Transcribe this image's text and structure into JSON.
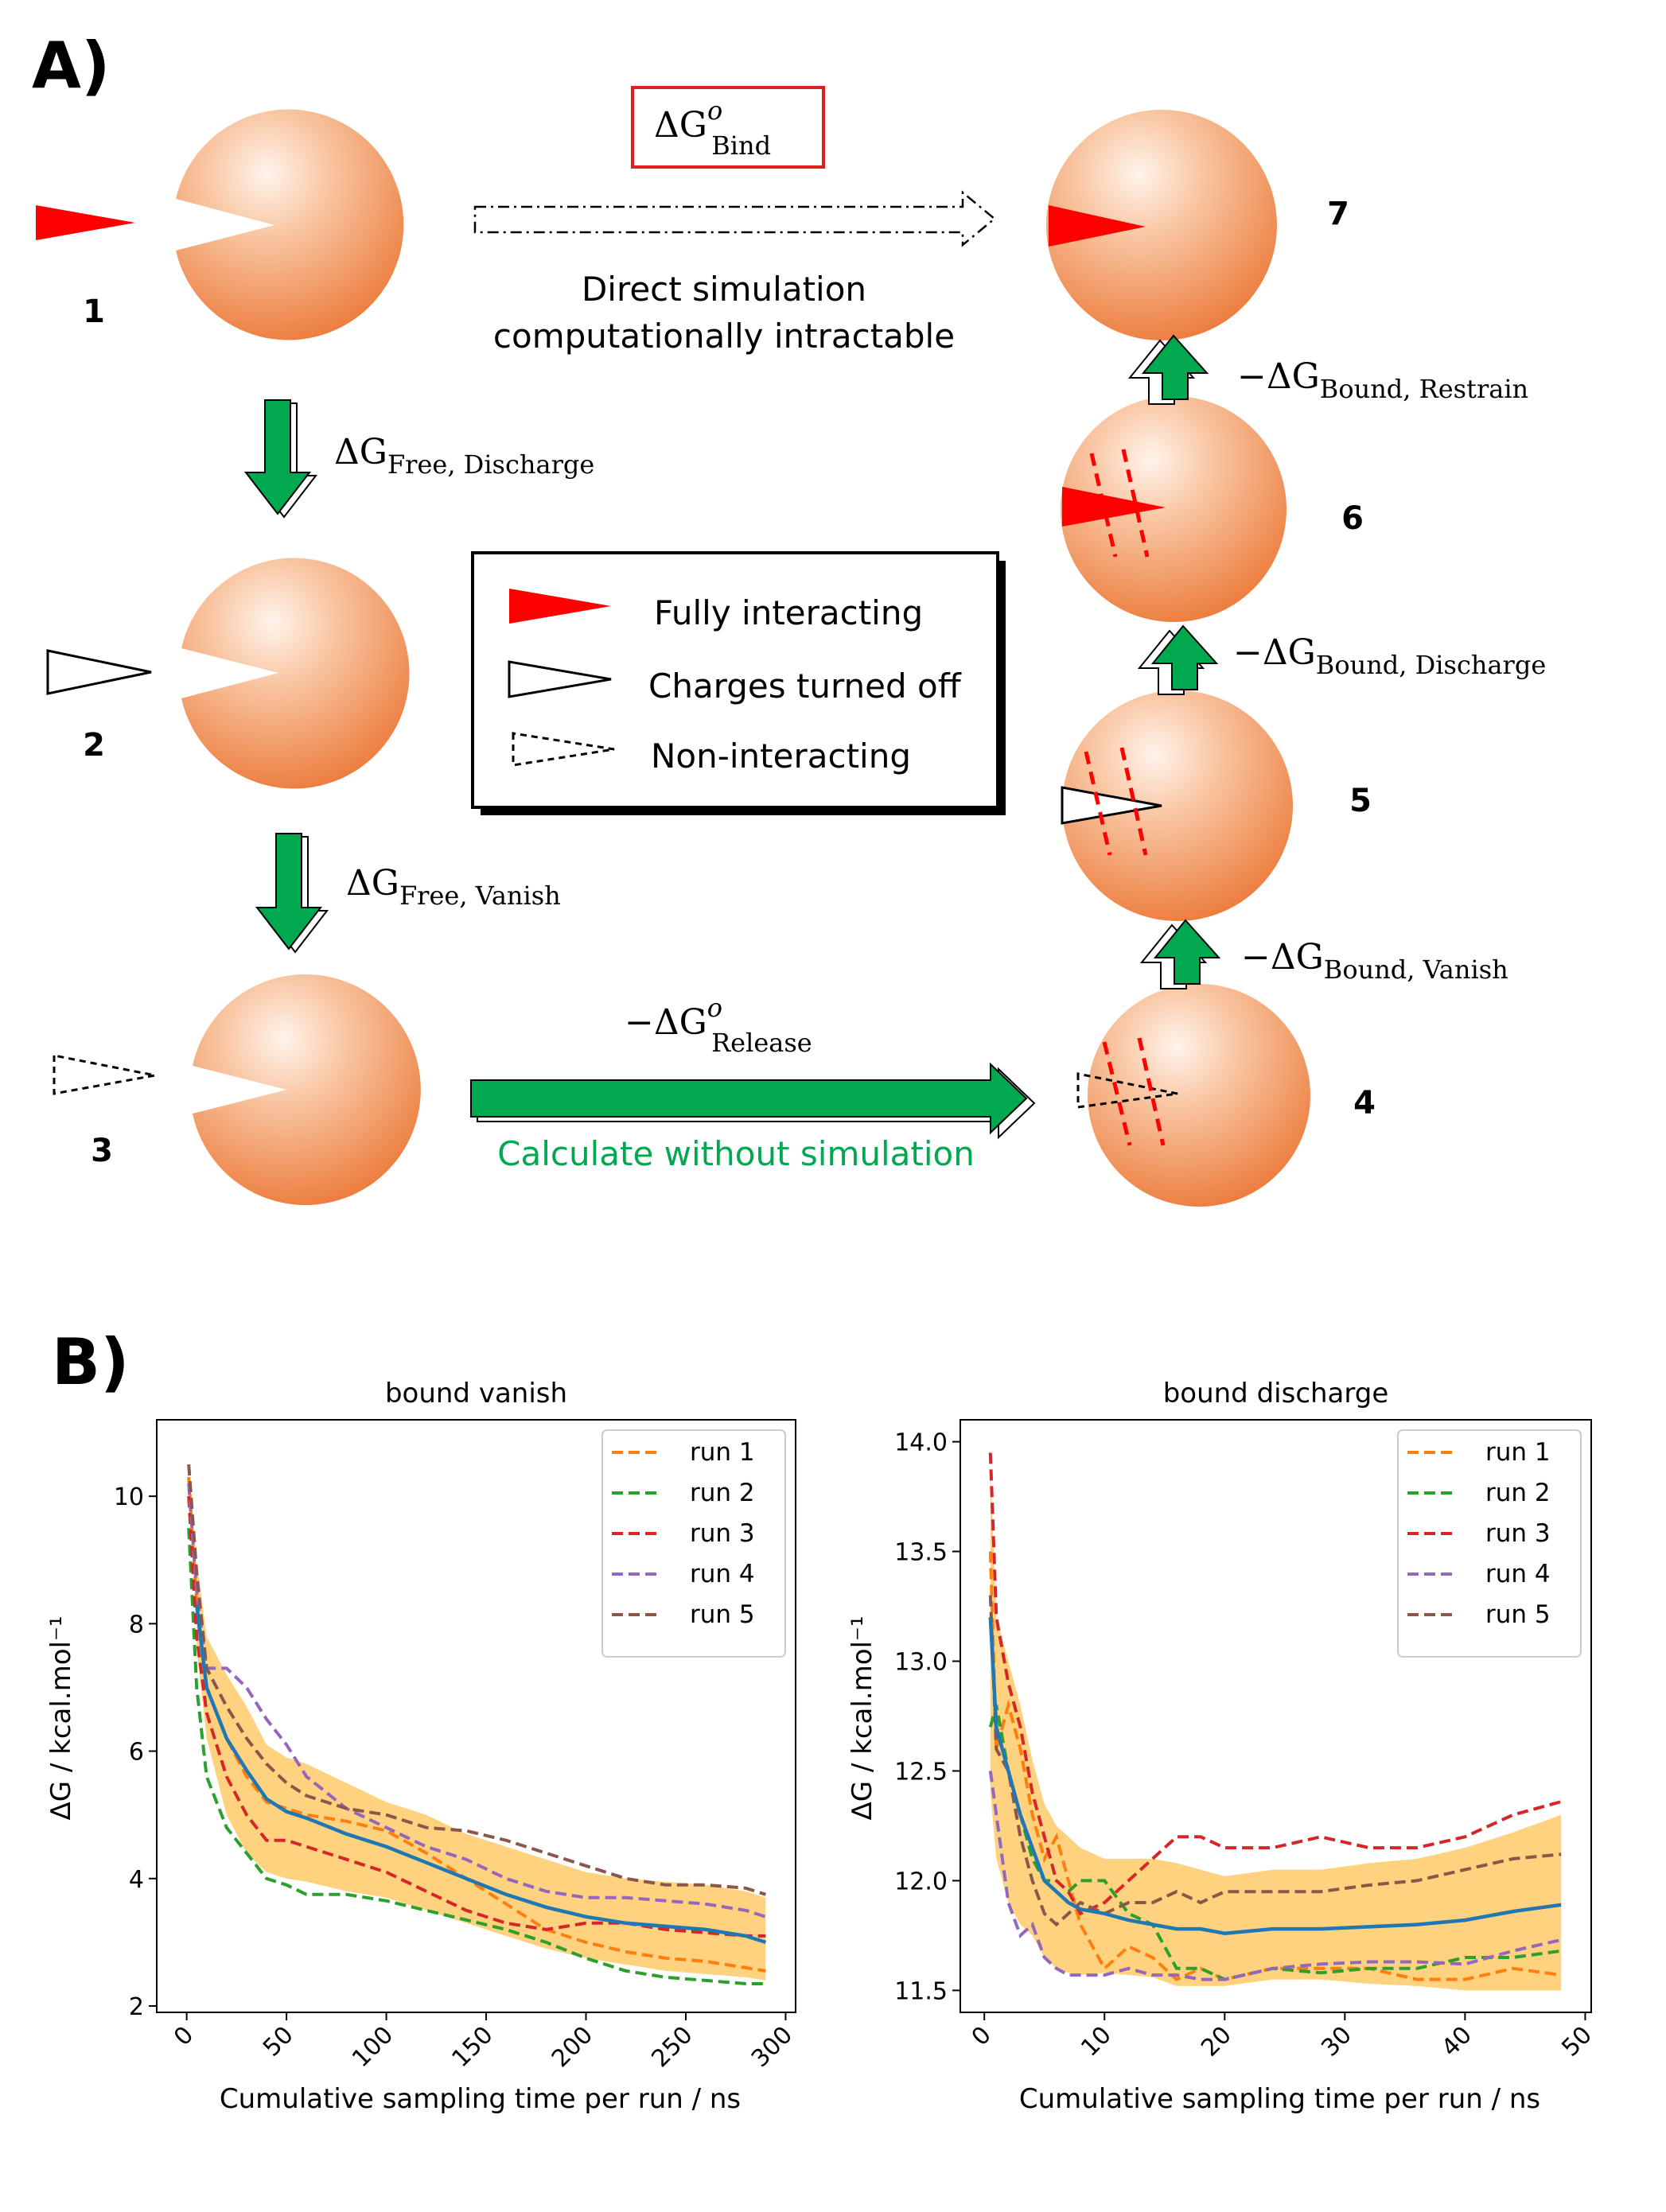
{
  "panel_a": {
    "label": "A)",
    "state_numbers": [
      "1",
      "2",
      "3",
      "4",
      "5",
      "6",
      "7"
    ],
    "bind_label_main": "ΔG",
    "bind_label_sup": "o",
    "bind_label_sub": "Bind",
    "direct_line1": "Direct simulation",
    "direct_line2": "computationally intractable",
    "free_discharge_main": "ΔG",
    "free_discharge_sub": "Free, Discharge",
    "free_vanish_main": "ΔG",
    "free_vanish_sub": "Free, Vanish",
    "release_main": "−ΔG",
    "release_sup": "o",
    "release_sub": "Release",
    "calc_text": "Calculate without simulation",
    "bound_vanish_main": "−ΔG",
    "bound_vanish_sub": "Bound, Vanish",
    "bound_discharge_main": "−ΔG",
    "bound_discharge_sub": "Bound, Discharge",
    "bound_restrain_main": "−ΔG",
    "bound_restrain_sub": "Bound, Restrain",
    "legend": [
      "Fully interacting",
      "Charges turned off",
      "Non-interacting"
    ],
    "colors": {
      "ligand": "#ff0000",
      "arrow": "#00a850",
      "calc_text": "#00a850",
      "protein": "#f0844a",
      "bind_box": "#e02020"
    }
  },
  "panel_b": {
    "label": "B)"
  },
  "chart_data": [
    {
      "type": "line",
      "title": "bound vanish",
      "xlabel": "Cumulative sampling time per run / ns",
      "ylabel": "ΔG / kcal.mol⁻¹",
      "xlim": [
        -15,
        305
      ],
      "ylim": [
        1.9,
        11.2
      ],
      "xticks": [
        "0",
        "50",
        "100",
        "150",
        "200",
        "250",
        "300"
      ],
      "yticks": [
        "2",
        "4",
        "6",
        "8",
        "10"
      ],
      "legend_position": "top-right",
      "series": [
        {
          "name": "run 1",
          "color": "#ff7f0e",
          "dashed": true,
          "x": [
            1,
            5,
            10,
            20,
            30,
            40,
            50,
            60,
            80,
            100,
            120,
            140,
            160,
            180,
            200,
            220,
            240,
            260,
            280,
            290
          ],
          "y": [
            10.3,
            8.3,
            7.0,
            6.2,
            5.6,
            5.2,
            5.1,
            5.0,
            4.9,
            4.75,
            4.4,
            4.0,
            3.6,
            3.2,
            3.0,
            2.85,
            2.75,
            2.7,
            2.6,
            2.55
          ]
        },
        {
          "name": "run 2",
          "color": "#2ca02c",
          "dashed": true,
          "x": [
            1,
            5,
            10,
            20,
            30,
            40,
            50,
            60,
            80,
            100,
            120,
            140,
            160,
            180,
            200,
            220,
            240,
            260,
            280,
            290
          ],
          "y": [
            9.5,
            7.0,
            5.6,
            4.8,
            4.4,
            4.0,
            3.9,
            3.75,
            3.75,
            3.65,
            3.5,
            3.35,
            3.2,
            3.0,
            2.75,
            2.55,
            2.45,
            2.4,
            2.35,
            2.35
          ]
        },
        {
          "name": "run 3",
          "color": "#d62728",
          "dashed": true,
          "x": [
            1,
            5,
            10,
            20,
            30,
            40,
            50,
            60,
            80,
            100,
            120,
            140,
            160,
            180,
            200,
            220,
            240,
            260,
            280,
            290
          ],
          "y": [
            10.0,
            7.8,
            6.6,
            5.6,
            5.0,
            4.6,
            4.6,
            4.5,
            4.3,
            4.1,
            3.8,
            3.5,
            3.3,
            3.2,
            3.3,
            3.3,
            3.2,
            3.15,
            3.1,
            3.1
          ]
        },
        {
          "name": "run 4",
          "color": "#9467bd",
          "dashed": true,
          "x": [
            1,
            5,
            10,
            20,
            30,
            40,
            50,
            60,
            80,
            100,
            120,
            140,
            160,
            180,
            200,
            220,
            240,
            260,
            280,
            290
          ],
          "y": [
            10.2,
            8.5,
            7.3,
            7.3,
            7.0,
            6.5,
            6.1,
            5.6,
            5.1,
            4.8,
            4.5,
            4.3,
            4.0,
            3.8,
            3.7,
            3.7,
            3.65,
            3.6,
            3.5,
            3.4
          ]
        },
        {
          "name": "run 5",
          "color": "#8c564b",
          "dashed": true,
          "x": [
            1,
            5,
            10,
            20,
            30,
            40,
            50,
            60,
            80,
            100,
            120,
            140,
            160,
            180,
            200,
            220,
            240,
            260,
            280,
            290
          ],
          "y": [
            10.5,
            8.8,
            7.3,
            6.7,
            6.2,
            5.8,
            5.5,
            5.3,
            5.1,
            5.0,
            4.8,
            4.75,
            4.6,
            4.4,
            4.2,
            4.0,
            3.9,
            3.9,
            3.85,
            3.75
          ]
        },
        {
          "name": "",
          "color": "#1f77b4",
          "dashed": false,
          "x": [
            5,
            10,
            20,
            30,
            40,
            50,
            60,
            80,
            100,
            120,
            140,
            160,
            180,
            200,
            220,
            240,
            260,
            280,
            290
          ],
          "y": [
            8.3,
            7.0,
            6.2,
            5.7,
            5.25,
            5.05,
            4.95,
            4.7,
            4.5,
            4.25,
            4.0,
            3.75,
            3.55,
            3.4,
            3.3,
            3.25,
            3.2,
            3.1,
            3.0
          ]
        }
      ],
      "band": {
        "color": "#ffd27f",
        "x": [
          5,
          10,
          20,
          30,
          40,
          50,
          60,
          80,
          100,
          120,
          140,
          160,
          180,
          200,
          220,
          240,
          260,
          280,
          290
        ],
        "lower": [
          7.6,
          6.2,
          5.0,
          4.4,
          4.1,
          4.0,
          3.95,
          3.8,
          3.7,
          3.5,
          3.3,
          3.1,
          2.9,
          2.75,
          2.65,
          2.55,
          2.5,
          2.45,
          2.4
        ],
        "upper": [
          9.0,
          7.8,
          7.2,
          6.7,
          6.1,
          5.9,
          5.8,
          5.5,
          5.2,
          5.0,
          4.7,
          4.5,
          4.3,
          4.1,
          4.0,
          3.95,
          3.9,
          3.8,
          3.7
        ]
      }
    },
    {
      "type": "line",
      "title": "bound discharge",
      "xlabel": "Cumulative sampling time per run / ns",
      "ylabel": "ΔG / kcal.mol⁻¹",
      "xlim": [
        -2,
        50.5
      ],
      "ylim": [
        11.4,
        14.1
      ],
      "xticks": [
        "0",
        "10",
        "20",
        "30",
        "40",
        "50"
      ],
      "yticks": [
        "11.5",
        "12.0",
        "12.5",
        "13.0",
        "13.5",
        "14.0"
      ],
      "legend_position": "top-right",
      "series": [
        {
          "name": "run 1",
          "color": "#ff7f0e",
          "dashed": true,
          "x": [
            0.5,
            1,
            2,
            3,
            4,
            5,
            6,
            7,
            8,
            10,
            12,
            14,
            16,
            18,
            20,
            24,
            28,
            32,
            36,
            40,
            44,
            48
          ],
          "y": [
            13.5,
            12.6,
            12.8,
            12.6,
            12.3,
            12.1,
            12.2,
            12.0,
            11.8,
            11.6,
            11.7,
            11.65,
            11.55,
            11.6,
            11.55,
            11.6,
            11.6,
            11.6,
            11.55,
            11.55,
            11.6,
            11.57
          ]
        },
        {
          "name": "run 2",
          "color": "#2ca02c",
          "dashed": true,
          "x": [
            0.5,
            1,
            2,
            3,
            4,
            5,
            6,
            7,
            8,
            10,
            12,
            14,
            16,
            18,
            20,
            24,
            28,
            32,
            36,
            40,
            44,
            48
          ],
          "y": [
            12.7,
            12.8,
            12.5,
            12.3,
            12.1,
            12.0,
            12.0,
            11.95,
            12.0,
            12.0,
            11.85,
            11.8,
            11.6,
            11.6,
            11.55,
            11.6,
            11.58,
            11.6,
            11.6,
            11.65,
            11.65,
            11.68
          ]
        },
        {
          "name": "run 3",
          "color": "#d62728",
          "dashed": true,
          "x": [
            0.5,
            1,
            2,
            3,
            4,
            5,
            6,
            7,
            8,
            10,
            12,
            14,
            16,
            18,
            20,
            24,
            28,
            32,
            36,
            40,
            44,
            48
          ],
          "y": [
            13.95,
            13.2,
            12.9,
            12.7,
            12.4,
            12.2,
            12.0,
            11.95,
            11.85,
            11.9,
            12.0,
            12.1,
            12.2,
            12.2,
            12.15,
            12.15,
            12.2,
            12.15,
            12.15,
            12.2,
            12.3,
            12.36
          ]
        },
        {
          "name": "run 4",
          "color": "#9467bd",
          "dashed": true,
          "x": [
            0.5,
            1,
            2,
            3,
            4,
            5,
            6,
            7,
            8,
            10,
            12,
            14,
            16,
            18,
            20,
            24,
            28,
            32,
            36,
            40,
            44,
            48
          ],
          "y": [
            12.5,
            12.3,
            11.9,
            11.75,
            11.8,
            11.65,
            11.6,
            11.57,
            11.57,
            11.57,
            11.6,
            11.57,
            11.57,
            11.55,
            11.55,
            11.6,
            11.62,
            11.63,
            11.63,
            11.62,
            11.68,
            11.73
          ]
        },
        {
          "name": "run 5",
          "color": "#8c564b",
          "dashed": true,
          "x": [
            0.5,
            1,
            2,
            3,
            4,
            5,
            6,
            7,
            8,
            10,
            12,
            14,
            16,
            18,
            20,
            24,
            28,
            32,
            36,
            40,
            44,
            48
          ],
          "y": [
            13.3,
            12.6,
            12.5,
            12.2,
            12.0,
            11.85,
            11.8,
            11.85,
            11.9,
            11.85,
            11.9,
            11.9,
            11.95,
            11.9,
            11.95,
            11.95,
            11.95,
            11.98,
            12.0,
            12.05,
            12.1,
            12.12
          ]
        },
        {
          "name": "",
          "color": "#1f77b4",
          "dashed": false,
          "x": [
            0.5,
            1,
            2,
            3,
            4,
            5,
            6,
            7,
            8,
            10,
            12,
            14,
            16,
            18,
            20,
            24,
            28,
            32,
            36,
            40,
            44,
            48
          ],
          "y": [
            13.2,
            12.7,
            12.5,
            12.3,
            12.15,
            12.0,
            11.95,
            11.9,
            11.87,
            11.85,
            11.82,
            11.8,
            11.78,
            11.78,
            11.76,
            11.78,
            11.78,
            11.79,
            11.8,
            11.82,
            11.86,
            11.89
          ]
        }
      ],
      "band": {
        "color": "#ffd27f",
        "x": [
          0.5,
          1,
          2,
          3,
          4,
          5,
          6,
          7,
          8,
          10,
          12,
          14,
          16,
          18,
          20,
          24,
          28,
          32,
          36,
          40,
          44,
          48
        ],
        "lower": [
          12.4,
          12.1,
          11.9,
          11.8,
          11.75,
          11.65,
          11.6,
          11.58,
          11.57,
          11.58,
          11.57,
          11.56,
          11.52,
          11.52,
          11.52,
          11.55,
          11.55,
          11.53,
          11.52,
          11.5,
          11.5,
          11.5
        ],
        "upper": [
          13.9,
          13.2,
          13.0,
          12.8,
          12.55,
          12.35,
          12.25,
          12.2,
          12.15,
          12.1,
          12.1,
          12.1,
          12.08,
          12.05,
          12.02,
          12.05,
          12.05,
          12.08,
          12.1,
          12.15,
          12.22,
          12.3
        ]
      }
    }
  ]
}
